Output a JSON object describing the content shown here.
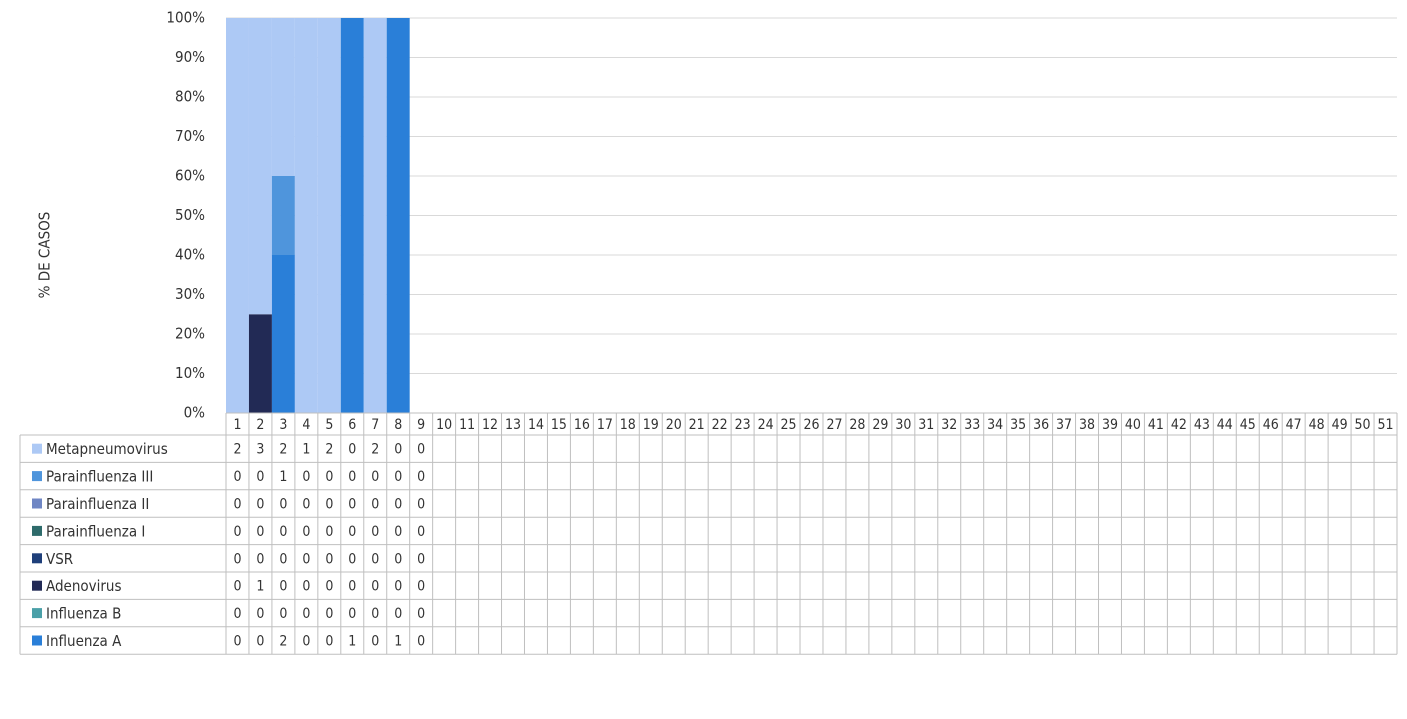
{
  "chart_data": {
    "type": "stacked_bar_percent",
    "y_axis_label": "% DE CASOS",
    "categories": [
      1,
      2,
      3,
      4,
      5,
      6,
      7,
      8,
      9,
      10,
      11,
      12,
      13,
      14,
      15,
      16,
      17,
      18,
      19,
      20,
      21,
      22,
      23,
      24,
      25,
      26,
      27,
      28,
      29,
      30,
      31,
      32,
      33,
      34,
      35,
      36,
      37,
      38,
      39,
      40,
      41,
      42,
      43,
      44,
      45,
      46,
      47,
      48,
      49,
      50,
      51
    ],
    "ylim": [
      0,
      100
    ],
    "yticks": [
      {
        "value": 0,
        "label": "0%"
      },
      {
        "value": 10,
        "label": "10%"
      },
      {
        "value": 20,
        "label": "20%"
      },
      {
        "value": 30,
        "label": "30%"
      },
      {
        "value": 40,
        "label": "40%"
      },
      {
        "value": 50,
        "label": "50%"
      },
      {
        "value": 60,
        "label": "60%"
      },
      {
        "value": 70,
        "label": "70%"
      },
      {
        "value": 80,
        "label": "80%"
      },
      {
        "value": 90,
        "label": "90%"
      },
      {
        "value": 100,
        "label": "100%"
      }
    ],
    "grid": true,
    "series": [
      {
        "name": "Metapneumovirus",
        "color": "#adc9f5",
        "values": [
          2,
          3,
          2,
          1,
          2,
          0,
          2,
          0,
          0,
          null,
          null,
          null,
          null,
          null,
          null,
          null,
          null,
          null,
          null,
          null,
          null,
          null,
          null,
          null,
          null,
          null,
          null,
          null,
          null,
          null,
          null,
          null,
          null,
          null,
          null,
          null,
          null,
          null,
          null,
          null,
          null,
          null,
          null,
          null,
          null,
          null,
          null,
          null,
          null,
          null,
          null
        ]
      },
      {
        "name": "Parainfluenza III",
        "color": "#4f95dc",
        "values": [
          0,
          0,
          1,
          0,
          0,
          0,
          0,
          0,
          0,
          null,
          null,
          null,
          null,
          null,
          null,
          null,
          null,
          null,
          null,
          null,
          null,
          null,
          null,
          null,
          null,
          null,
          null,
          null,
          null,
          null,
          null,
          null,
          null,
          null,
          null,
          null,
          null,
          null,
          null,
          null,
          null,
          null,
          null,
          null,
          null,
          null,
          null,
          null,
          null,
          null,
          null
        ]
      },
      {
        "name": "Parainfluenza II",
        "color": "#6f86c4",
        "values": [
          0,
          0,
          0,
          0,
          0,
          0,
          0,
          0,
          0,
          null,
          null,
          null,
          null,
          null,
          null,
          null,
          null,
          null,
          null,
          null,
          null,
          null,
          null,
          null,
          null,
          null,
          null,
          null,
          null,
          null,
          null,
          null,
          null,
          null,
          null,
          null,
          null,
          null,
          null,
          null,
          null,
          null,
          null,
          null,
          null,
          null,
          null,
          null,
          null,
          null,
          null
        ]
      },
      {
        "name": "Parainfluenza I",
        "color": "#2e6b6b",
        "values": [
          0,
          0,
          0,
          0,
          0,
          0,
          0,
          0,
          0,
          null,
          null,
          null,
          null,
          null,
          null,
          null,
          null,
          null,
          null,
          null,
          null,
          null,
          null,
          null,
          null,
          null,
          null,
          null,
          null,
          null,
          null,
          null,
          null,
          null,
          null,
          null,
          null,
          null,
          null,
          null,
          null,
          null,
          null,
          null,
          null,
          null,
          null,
          null,
          null,
          null,
          null
        ]
      },
      {
        "name": "VSR",
        "color": "#1f3f7a",
        "values": [
          0,
          0,
          0,
          0,
          0,
          0,
          0,
          0,
          0,
          null,
          null,
          null,
          null,
          null,
          null,
          null,
          null,
          null,
          null,
          null,
          null,
          null,
          null,
          null,
          null,
          null,
          null,
          null,
          null,
          null,
          null,
          null,
          null,
          null,
          null,
          null,
          null,
          null,
          null,
          null,
          null,
          null,
          null,
          null,
          null,
          null,
          null,
          null,
          null,
          null,
          null
        ]
      },
      {
        "name": "Adenovirus",
        "color": "#222a55",
        "values": [
          0,
          1,
          0,
          0,
          0,
          0,
          0,
          0,
          0,
          null,
          null,
          null,
          null,
          null,
          null,
          null,
          null,
          null,
          null,
          null,
          null,
          null,
          null,
          null,
          null,
          null,
          null,
          null,
          null,
          null,
          null,
          null,
          null,
          null,
          null,
          null,
          null,
          null,
          null,
          null,
          null,
          null,
          null,
          null,
          null,
          null,
          null,
          null,
          null,
          null,
          null
        ]
      },
      {
        "name": "Influenza B",
        "color": "#4aa0a8",
        "values": [
          0,
          0,
          0,
          0,
          0,
          0,
          0,
          0,
          0,
          null,
          null,
          null,
          null,
          null,
          null,
          null,
          null,
          null,
          null,
          null,
          null,
          null,
          null,
          null,
          null,
          null,
          null,
          null,
          null,
          null,
          null,
          null,
          null,
          null,
          null,
          null,
          null,
          null,
          null,
          null,
          null,
          null,
          null,
          null,
          null,
          null,
          null,
          null,
          null,
          null,
          null
        ]
      },
      {
        "name": "Influenza A",
        "color": "#2a7fd8",
        "values": [
          0,
          0,
          2,
          0,
          0,
          1,
          0,
          1,
          0,
          null,
          null,
          null,
          null,
          null,
          null,
          null,
          null,
          null,
          null,
          null,
          null,
          null,
          null,
          null,
          null,
          null,
          null,
          null,
          null,
          null,
          null,
          null,
          null,
          null,
          null,
          null,
          null,
          null,
          null,
          null,
          null,
          null,
          null,
          null,
          null,
          null,
          null,
          null,
          null,
          null,
          null
        ]
      }
    ]
  }
}
